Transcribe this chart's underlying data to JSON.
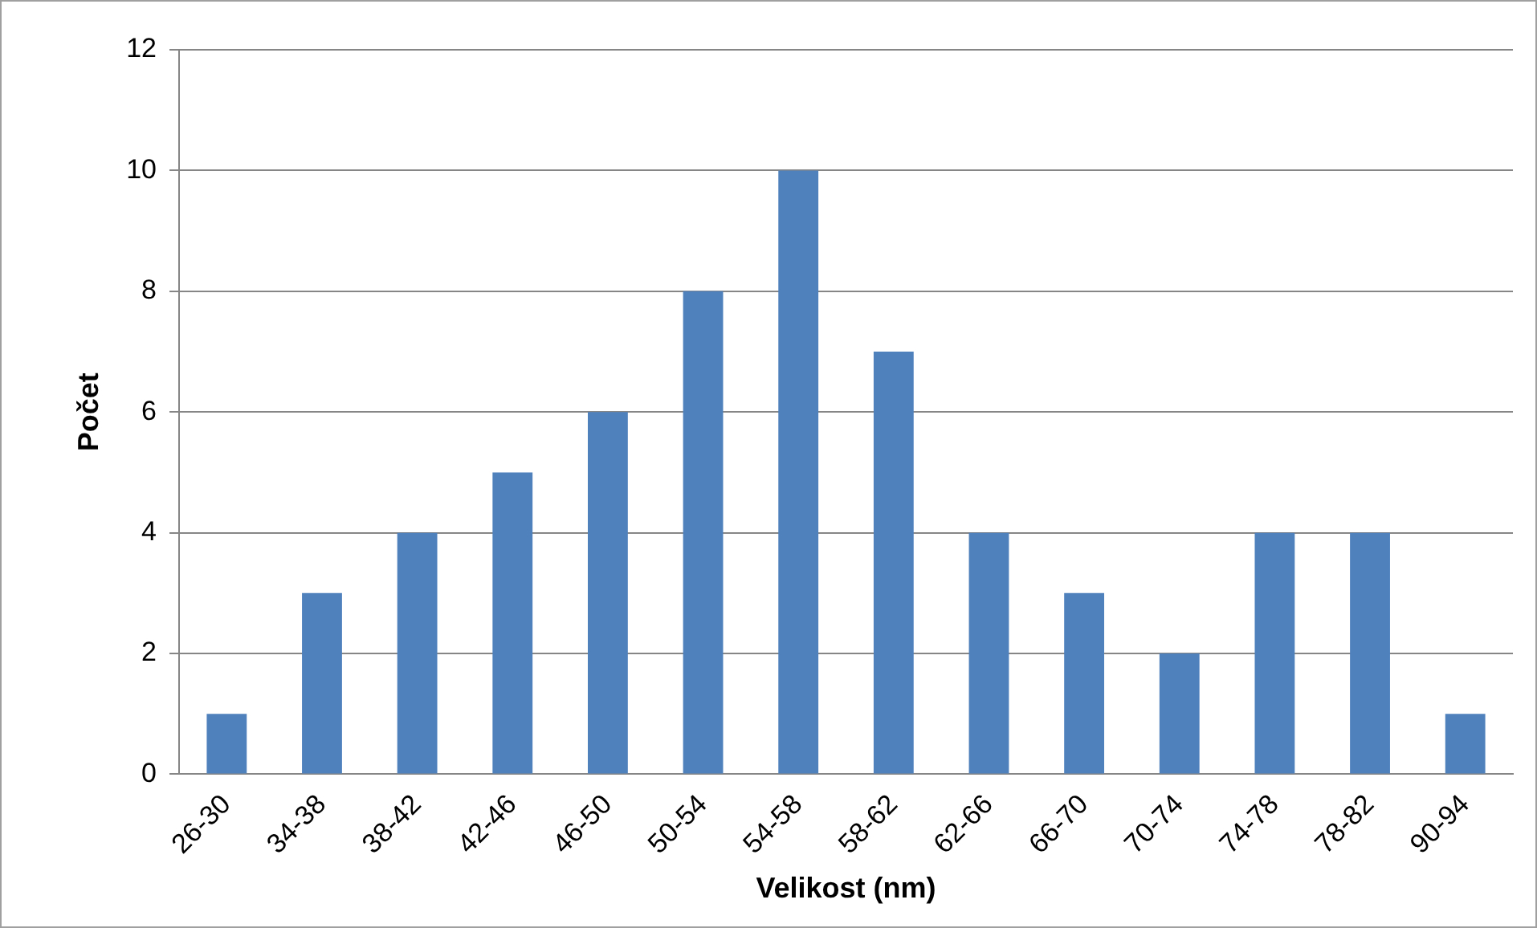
{
  "chart_data": {
    "type": "bar",
    "xlabel": "Velikost (nm)",
    "ylabel": "Počet",
    "categories": [
      "26-30",
      "34-38",
      "38-42",
      "42-46",
      "46-50",
      "50-54",
      "54-58",
      "58-62",
      "62-66",
      "66-70",
      "70-74",
      "74-78",
      "78-82",
      "90-94"
    ],
    "values": [
      1,
      3,
      4,
      5,
      6,
      8,
      10,
      7,
      4,
      3,
      2,
      4,
      4,
      1
    ],
    "color": "#4f81bd",
    "ylim": [
      0,
      12
    ],
    "yticks": [
      0,
      2,
      4,
      6,
      8,
      10,
      12
    ],
    "grid": "y",
    "legend": false
  }
}
